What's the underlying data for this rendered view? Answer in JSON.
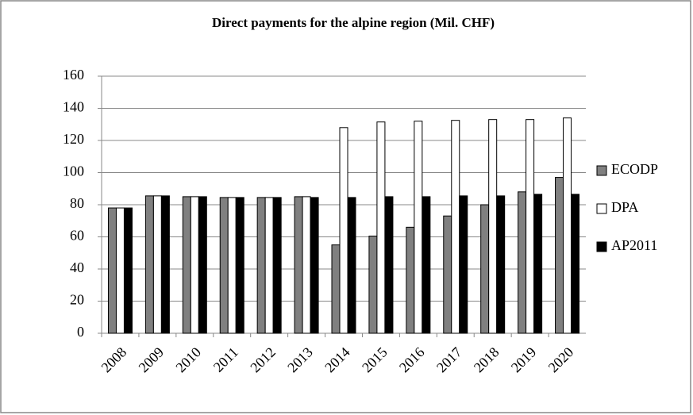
{
  "chart_data": {
    "type": "bar",
    "title": "Direct payments for the alpine region (Mil. CHF)",
    "categories": [
      "2008",
      "2009",
      "2010",
      "2011",
      "2012",
      "2013",
      "2014",
      "2015",
      "2016",
      "2017",
      "2018",
      "2019",
      "2020"
    ],
    "series": [
      {
        "name": "ECODP",
        "color": "#808080",
        "values": [
          78,
          85.5,
          85,
          84.5,
          84.5,
          85,
          55,
          60.5,
          66,
          73,
          80,
          88,
          97
        ]
      },
      {
        "name": "DPA",
        "color": "#ffffff",
        "values": [
          78,
          85.5,
          85,
          84.5,
          84.5,
          85,
          128,
          131.5,
          132,
          132.5,
          133,
          133,
          134
        ]
      },
      {
        "name": "AP2011",
        "color": "#000000",
        "values": [
          78,
          85.5,
          85,
          84.5,
          84.5,
          84.5,
          84.5,
          85,
          85,
          85.5,
          85.5,
          86.5,
          86.5
        ]
      }
    ],
    "ylim": [
      0,
      160
    ],
    "yticks": [
      0,
      20,
      40,
      60,
      80,
      100,
      120,
      140,
      160
    ],
    "grid": true,
    "legend": "right"
  }
}
